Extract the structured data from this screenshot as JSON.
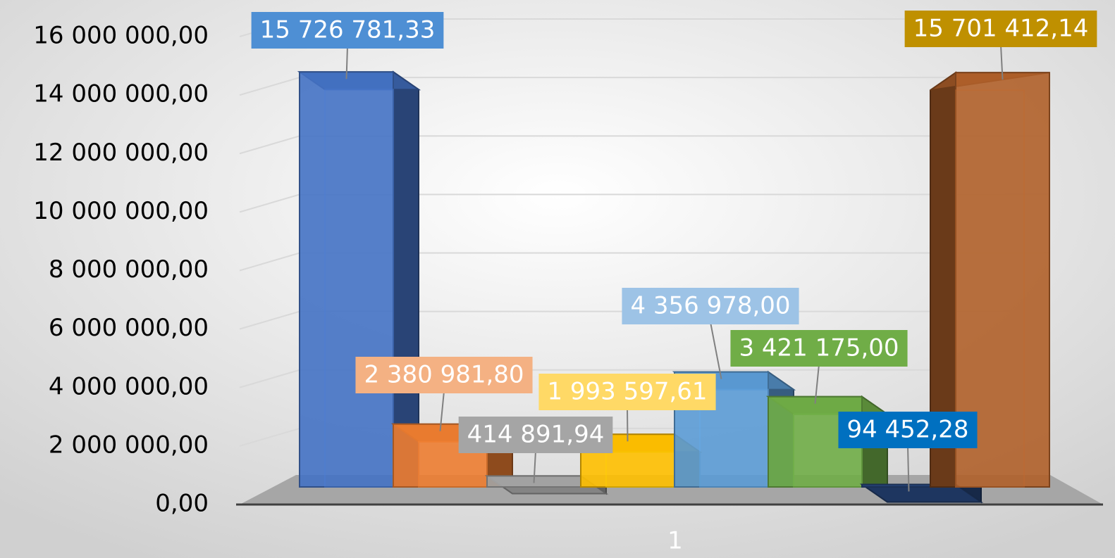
{
  "chart_data": {
    "type": "bar3d",
    "categories": [
      "1"
    ],
    "series": [
      {
        "color": "#4472c4",
        "label_color": "#4e8fd4",
        "values": [
          15726781.33
        ],
        "value_labels": [
          "15 726 781,33"
        ]
      },
      {
        "color": "#ed7d31",
        "label_color": "#f4b183",
        "values": [
          2380981.8
        ],
        "value_labels": [
          "2 380 981,80"
        ]
      },
      {
        "color": "#a5a5a5",
        "label_color": "#a5a5a5",
        "values": [
          414891.94
        ],
        "value_labels": [
          "414 891,94"
        ]
      },
      {
        "color": "#ffc000",
        "label_color": "#ffd966",
        "values": [
          1993597.61
        ],
        "value_labels": [
          "1 993 597,61"
        ]
      },
      {
        "color": "#5b9bd5",
        "label_color": "#9dc3e6",
        "values": [
          4356978.0
        ],
        "value_labels": [
          "4 356 978,00"
        ]
      },
      {
        "color": "#70ad47",
        "label_color": "#70ad47",
        "values": [
          3421175.0
        ],
        "value_labels": [
          "3 421 175,00"
        ]
      },
      {
        "color": "#264478",
        "label_color": "#0070c0",
        "values": [
          94452.28
        ],
        "value_labels": [
          "94 452,28"
        ]
      },
      {
        "color": "#b0602a",
        "label_color": "#bf9000",
        "values": [
          15701412.14
        ],
        "value_labels": [
          "15 701 412,14"
        ]
      }
    ],
    "ylim": [
      0,
      16000000
    ],
    "yticks": [
      {
        "value": 0,
        "label": "0,00"
      },
      {
        "value": 2000000,
        "label": "2 000 000,00"
      },
      {
        "value": 4000000,
        "label": "4 000 000,00"
      },
      {
        "value": 6000000,
        "label": "6 000 000,00"
      },
      {
        "value": 8000000,
        "label": "8 000 000,00"
      },
      {
        "value": 10000000,
        "label": "10 000 000,00"
      },
      {
        "value": 12000000,
        "label": "12 000 000,00"
      },
      {
        "value": 14000000,
        "label": "14 000 000,00"
      },
      {
        "value": 16000000,
        "label": "16 000 000,00"
      }
    ],
    "grid": true
  }
}
